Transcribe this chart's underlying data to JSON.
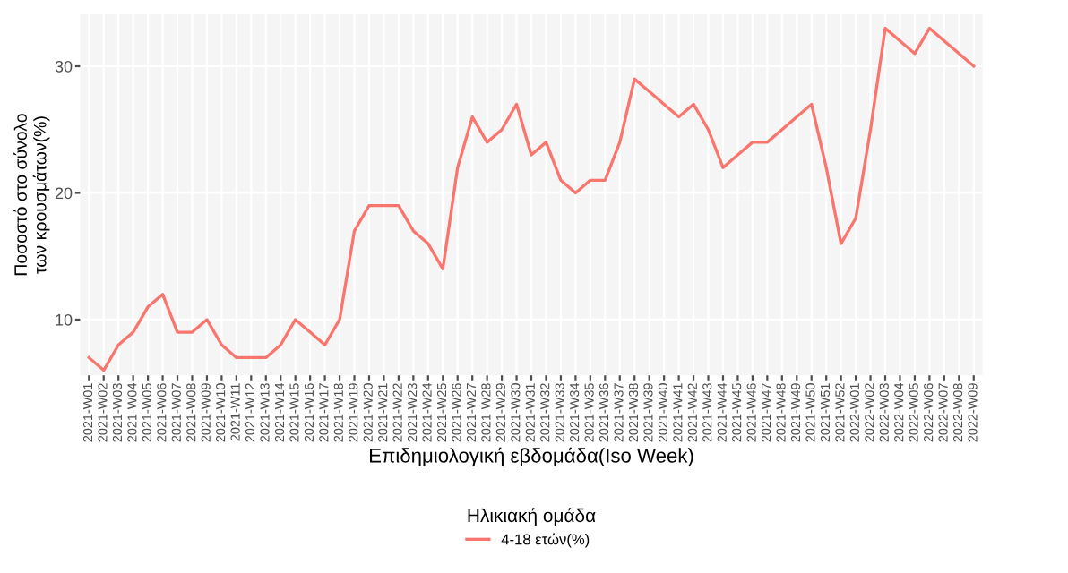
{
  "chart_data": {
    "type": "line",
    "xlabel": "Επιδημιολογική εβδομάδα(Iso Week)",
    "ylabel": "Ποσοστό στο σύνολο\nτων κρουσμάτων(%)",
    "legend_title": "Ηλικιακή ομάδα",
    "categories": [
      "2021-W01",
      "2021-W02",
      "2021-W03",
      "2021-W04",
      "2021-W05",
      "2021-W06",
      "2021-W07",
      "2021-W08",
      "2021-W09",
      "2021-W10",
      "2021-W11",
      "2021-W12",
      "2021-W13",
      "2021-W14",
      "2021-W15",
      "2021-W16",
      "2021-W17",
      "2021-W18",
      "2021-W19",
      "2021-W20",
      "2021-W21",
      "2021-W22",
      "2021-W23",
      "2021-W24",
      "2021-W25",
      "2021-W26",
      "2021-W27",
      "2021-W28",
      "2021-W29",
      "2021-W30",
      "2021-W31",
      "2021-W32",
      "2021-W33",
      "2021-W34",
      "2021-W35",
      "2021-W36",
      "2021-W37",
      "2021-W38",
      "2021-W39",
      "2021-W40",
      "2021-W41",
      "2021-W42",
      "2021-W43",
      "2021-W44",
      "2021-W45",
      "2021-W46",
      "2021-W47",
      "2021-W48",
      "2021-W49",
      "2021-W50",
      "2021-W51",
      "2021-W52",
      "2022-W01",
      "2022-W02",
      "2022-W03",
      "2022-W04",
      "2022-W05",
      "2022-W06",
      "2022-W07",
      "2022-W08",
      "2022-W09"
    ],
    "series": [
      {
        "name": "4-18 ετών(%)",
        "color": "#f8766d",
        "values": [
          7,
          6,
          8,
          9,
          11,
          12,
          9,
          9,
          10,
          8,
          7,
          7,
          7,
          8,
          10,
          9,
          8,
          10,
          17,
          19,
          19,
          19,
          17,
          16,
          14,
          22,
          26,
          24,
          25,
          27,
          23,
          24,
          21,
          20,
          21,
          21,
          24,
          29,
          28,
          27,
          26,
          27,
          25,
          22,
          23,
          24,
          24,
          25,
          26,
          27,
          22,
          16,
          18,
          25,
          33,
          32,
          31,
          33,
          32,
          31,
          30
        ]
      }
    ],
    "ylim": [
      5.6,
      34.1
    ],
    "yticks": [
      10,
      20,
      30
    ],
    "grid": true,
    "legend": "bottom",
    "marker": "none",
    "line_style": "solid"
  }
}
